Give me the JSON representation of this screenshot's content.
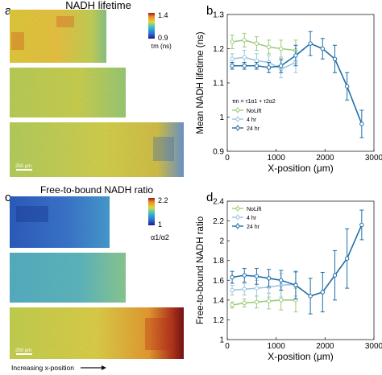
{
  "panels": {
    "a": {
      "letter": "a",
      "title": "NADH lifetime",
      "cbar_max": "1.4",
      "cbar_min": "0.9",
      "cbar_unit": "τm (ns)",
      "scale_bar": "250 μm"
    },
    "c": {
      "letter": "c",
      "title": "Free-to-bound NADH ratio",
      "cbar_max": "2.2",
      "cbar_min": "1",
      "cbar_unit": "α1/α2",
      "scale_bar": "250 μm"
    },
    "footer": "Increasing x-position"
  },
  "colors": {
    "NoLift": "#9ccc7a",
    "4 hr": "#9cc6e0",
    "24 hr": "#1f6fa6"
  },
  "chart_data": [
    {
      "id": "b",
      "letter": "b",
      "type": "line",
      "xlabel": "X-position (μm)",
      "ylabel": "Mean NADH lifetime (ns)",
      "xlim": [
        0,
        3000
      ],
      "ylim": [
        0.9,
        1.3
      ],
      "xticks": [
        "0",
        "1000",
        "2000",
        "3000"
      ],
      "yticks": [
        "0.9",
        "1",
        "1.1",
        "1.2",
        "1.3"
      ],
      "legend_title": "τm = τ1α1 + τ2α2",
      "legend_position": "middle-left",
      "series": [
        {
          "name": "NoLift",
          "x": [
            100,
            350,
            600,
            850,
            1100,
            1400
          ],
          "y": [
            1.22,
            1.225,
            1.215,
            1.205,
            1.2,
            1.195
          ],
          "err": [
            0.02,
            0.02,
            0.02,
            0.02,
            0.025,
            0.03
          ]
        },
        {
          "name": "4 hr",
          "x": [
            100,
            350,
            600,
            850,
            1100,
            1400
          ],
          "y": [
            1.17,
            1.175,
            1.165,
            1.16,
            1.14,
            1.16
          ],
          "err": [
            0.015,
            0.02,
            0.02,
            0.02,
            0.025,
            0.03
          ]
        },
        {
          "name": "24 hr",
          "x": [
            100,
            350,
            600,
            850,
            1100,
            1400,
            1700,
            1950,
            2200,
            2450,
            2750
          ],
          "y": [
            1.15,
            1.15,
            1.15,
            1.145,
            1.15,
            1.18,
            1.215,
            1.2,
            1.17,
            1.09,
            0.98
          ],
          "err": [
            0.01,
            0.01,
            0.01,
            0.015,
            0.02,
            0.03,
            0.035,
            0.03,
            0.04,
            0.04,
            0.04
          ]
        }
      ]
    },
    {
      "id": "d",
      "letter": "d",
      "type": "line",
      "xlabel": "X-position (μm)",
      "ylabel": "Free-to-bound NADH ratio",
      "xlim": [
        0,
        3000
      ],
      "ylim": [
        1.0,
        2.4
      ],
      "xticks": [
        "0",
        "1000",
        "2000",
        "3000"
      ],
      "yticks": [
        "1",
        "1.2",
        "1.4",
        "1.6",
        "1.8",
        "2",
        "2.2",
        "2.4"
      ],
      "legend_position": "top-left",
      "series": [
        {
          "name": "NoLift",
          "x": [
            100,
            350,
            600,
            850,
            1100,
            1400
          ],
          "y": [
            1.35,
            1.37,
            1.38,
            1.39,
            1.4,
            1.4
          ],
          "err": [
            0.03,
            0.04,
            0.06,
            0.08,
            0.1,
            0.12
          ]
        },
        {
          "name": "4 hr",
          "x": [
            100,
            350,
            600,
            850,
            1100,
            1400
          ],
          "y": [
            1.5,
            1.51,
            1.52,
            1.53,
            1.55,
            1.56
          ],
          "err": [
            0.05,
            0.06,
            0.08,
            0.1,
            0.12,
            0.12
          ]
        },
        {
          "name": "24 hr",
          "x": [
            100,
            350,
            600,
            850,
            1100,
            1400,
            1700,
            1950,
            2200,
            2450,
            2750
          ],
          "y": [
            1.63,
            1.65,
            1.64,
            1.62,
            1.6,
            1.55,
            1.44,
            1.48,
            1.65,
            1.82,
            2.16
          ],
          "err": [
            0.06,
            0.07,
            0.08,
            0.09,
            0.1,
            0.14,
            0.18,
            0.2,
            0.25,
            0.3,
            0.15
          ]
        }
      ]
    }
  ]
}
